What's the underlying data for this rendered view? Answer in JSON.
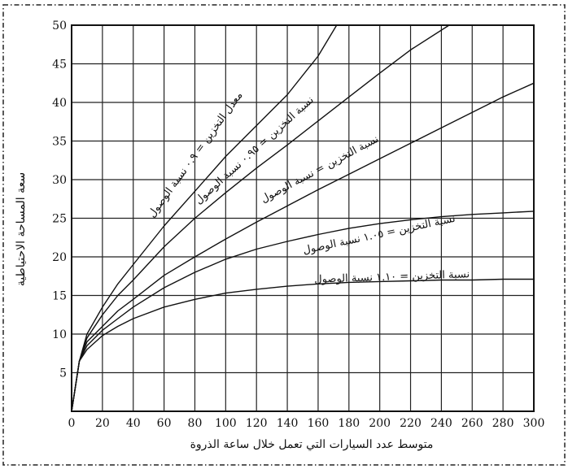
{
  "chart_data": {
    "type": "line",
    "xlabel": "متوسط عدد السيارات التي تعمل خلال ساعة الذروة",
    "ylabel": "سعة المساحة الاحتياطية",
    "xlim": [
      0,
      300
    ],
    "ylim": [
      0,
      50
    ],
    "x_ticks": [
      "0",
      "20",
      "40",
      "60",
      "80",
      "100",
      "120",
      "140",
      "160",
      "180",
      "200",
      "220",
      "240",
      "260",
      "280",
      "300"
    ],
    "y_ticks": [
      "5",
      "10",
      "15",
      "20",
      "25",
      "30",
      "35",
      "40",
      "45",
      "50"
    ],
    "grid": true,
    "series": [
      {
        "name": "معدل التخزين = ٠.٩ نسبة الوصول",
        "color": "#111111",
        "x": [
          0,
          5,
          10,
          20,
          30,
          40,
          60,
          80,
          100,
          120,
          140,
          160,
          172
        ],
        "y": [
          0,
          6.5,
          10,
          13.5,
          16.5,
          19,
          24,
          28.5,
          33,
          37,
          41,
          46,
          50
        ]
      },
      {
        "name": "نسبة التخزين = ٠.٩٥ نسبة الوصول",
        "color": "#111111",
        "x": [
          0,
          5,
          10,
          20,
          30,
          40,
          60,
          80,
          100,
          120,
          140,
          160,
          180,
          200,
          220,
          245
        ],
        "y": [
          0,
          6.5,
          9.5,
          12.5,
          15,
          17,
          21.3,
          25,
          28.3,
          31.5,
          34.5,
          37.6,
          40.7,
          43.8,
          46.8,
          50
        ]
      },
      {
        "name": "نسبة التخزين = نسبة الوصول",
        "color": "#111111",
        "x": [
          0,
          5,
          10,
          20,
          30,
          40,
          60,
          80,
          100,
          120,
          140,
          160,
          180,
          200,
          220,
          240,
          260,
          280,
          300
        ],
        "y": [
          0,
          6.5,
          9,
          11,
          13,
          14.5,
          17.6,
          20,
          22.3,
          24.5,
          26.6,
          28.7,
          30.7,
          32.7,
          34.7,
          36.7,
          38.7,
          40.7,
          42.5
        ]
      },
      {
        "name": "نسبة التخزين = ١.٠٥ نسبة الوصول",
        "color": "#111111",
        "x": [
          0,
          5,
          10,
          20,
          30,
          40,
          60,
          80,
          100,
          120,
          140,
          160,
          180,
          200,
          220,
          240,
          260,
          280,
          300
        ],
        "y": [
          0,
          6.5,
          8.5,
          10.5,
          12,
          13.5,
          16,
          18,
          19.7,
          21,
          22,
          22.9,
          23.7,
          24.3,
          24.8,
          25.2,
          25.5,
          25.7,
          25.9
        ]
      },
      {
        "name": "نسبة التخزين = ١.١٠ نسبة الوصول",
        "color": "#111111",
        "x": [
          0,
          5,
          10,
          20,
          30,
          40,
          60,
          80,
          100,
          120,
          140,
          160,
          180,
          200,
          220,
          240,
          260,
          280,
          300
        ],
        "y": [
          0,
          6.5,
          8,
          9.8,
          11,
          12,
          13.5,
          14.5,
          15.3,
          15.8,
          16.2,
          16.5,
          16.7,
          16.8,
          16.9,
          17.0,
          17.0,
          17.1,
          17.1
        ]
      }
    ],
    "annotations": [
      {
        "text": "معدل التخزين = ٠.٩ نسبة الوصول",
        "x": 82,
        "y": 33,
        "angle": -54
      },
      {
        "text": "نسبة التخزين = ٠.٩٥ نسبة الوصول",
        "x": 120,
        "y": 33.5,
        "angle": -42
      },
      {
        "text": "نسبة التخزين = نسبة الوصول",
        "x": 162,
        "y": 31,
        "angle": -28
      },
      {
        "text": "نسبة التخزين = ١.٠٥ نسبة الوصول",
        "x": 200,
        "y": 22.5,
        "angle": -12
      },
      {
        "text": "نسبة التخزين = ١.١٠ نسبة الوصول",
        "x": 208,
        "y": 17,
        "angle": -2
      }
    ]
  }
}
